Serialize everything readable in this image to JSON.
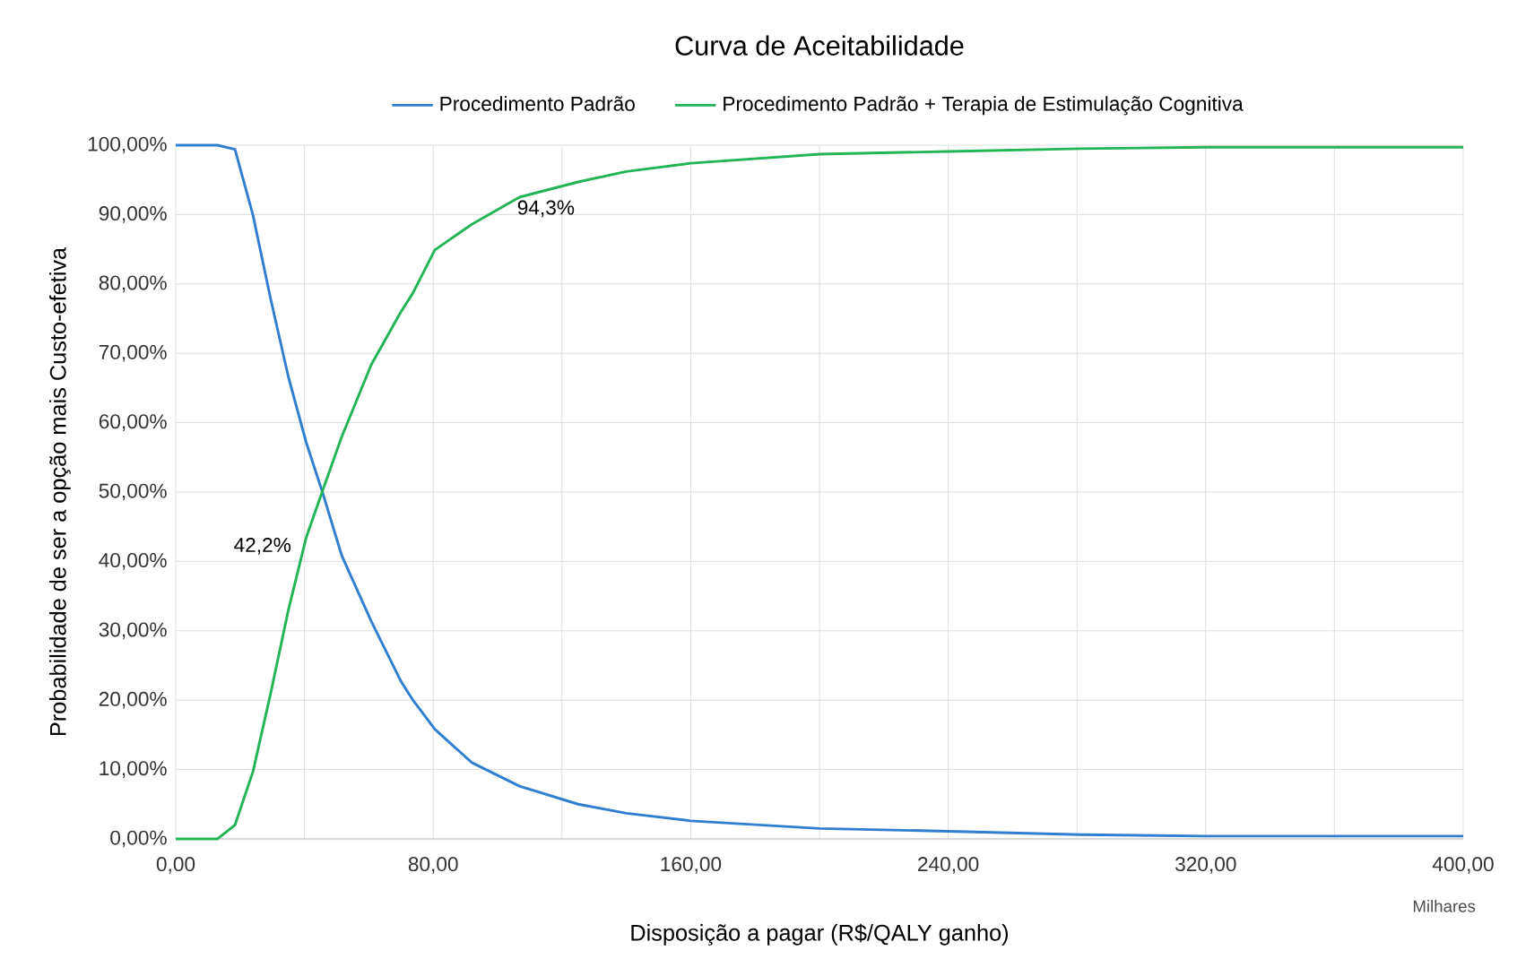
{
  "chart_data": {
    "type": "line",
    "title": "Curva de Aceitabilidade",
    "xlabel": "Disposição a pagar (R$/QALY ganho)",
    "ylabel": "Probabilidade de ser a opção mais Custo-efetiva",
    "x": [
      0,
      13,
      18.4,
      24,
      29.5,
      35,
      40.5,
      45.7,
      51.6,
      60.8,
      70,
      73.7,
      80.5,
      92,
      106.8,
      125,
      140,
      160,
      200,
      240,
      281,
      320,
      400
    ],
    "series": [
      {
        "name": "Procedimento Padrão",
        "color": "#2f7ed0",
        "values": [
          100,
          100,
          99.4,
          89.9,
          77.8,
          66.6,
          57.2,
          49.8,
          40.8,
          31.3,
          22.7,
          20.0,
          15.8,
          11,
          7.6,
          5.0,
          3.7,
          2.6,
          1.5,
          1.1,
          0.6,
          0.4,
          0.4
        ]
      },
      {
        "name": "Procedimento Padrão + Terapia de Estimulação Cognitiva",
        "color": "#22b455",
        "values": [
          0,
          0,
          2.0,
          9.7,
          21,
          33,
          43.4,
          50.3,
          58,
          68.4,
          76,
          78.7,
          84.9,
          88.6,
          92.5,
          94.7,
          96.2,
          97.4,
          98.7,
          99.1,
          99.5,
          99.7,
          99.7
        ]
      }
    ],
    "xlim": [
      0,
      400
    ],
    "xticks": [
      {
        "value": 0,
        "label": "0,00"
      },
      {
        "value": 40,
        "label": null
      },
      {
        "value": 80,
        "label": "80,00"
      },
      {
        "value": 120,
        "label": null
      },
      {
        "value": 160,
        "label": "160,00"
      },
      {
        "value": 200,
        "label": null
      },
      {
        "value": 240,
        "label": "240,00"
      },
      {
        "value": 280,
        "label": null
      },
      {
        "value": 320,
        "label": "320,00"
      },
      {
        "value": 360,
        "label": null
      },
      {
        "value": 400,
        "label": "400,00"
      }
    ],
    "ylim": [
      0,
      100
    ],
    "yticks": [
      {
        "value": 0,
        "label": "0,00%"
      },
      {
        "value": 10,
        "label": "10,00%"
      },
      {
        "value": 20,
        "label": "20,00%"
      },
      {
        "value": 30,
        "label": "30,00%"
      },
      {
        "value": 40,
        "label": "40,00%"
      },
      {
        "value": 50,
        "label": "50,00%"
      },
      {
        "value": 60,
        "label": "60,00%"
      },
      {
        "value": 70,
        "label": "70,00%"
      },
      {
        "value": 80,
        "label": "80,00%"
      },
      {
        "value": 90,
        "label": "90,00%"
      },
      {
        "value": 100,
        "label": "100,00%"
      }
    ],
    "annotations": [
      {
        "text": "42,2%",
        "x": 40,
        "y": 42.2
      },
      {
        "text": "94,3%",
        "x": 115,
        "y": 94.3
      },
      "Milhares"
    ],
    "grid": true,
    "legend": "top",
    "marker": "none",
    "line_style": "solid"
  }
}
